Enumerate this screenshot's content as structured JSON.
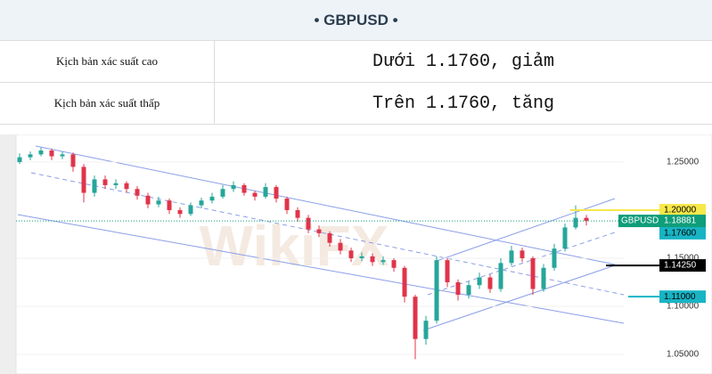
{
  "header": {
    "title": "• GBPUSD •"
  },
  "table": {
    "rows": [
      [
        "Kịch bản xác suất cao",
        "Dưới 1.1760, giảm"
      ],
      [
        "Kịch bản xác suất thấp",
        "Trên 1.1760, tăng"
      ]
    ]
  },
  "chart_data": {
    "type": "candlestick",
    "watermark": "WikiFX",
    "up_color": "#26a69a",
    "down_color": "#e0344a",
    "categories": [
      null,
      null,
      null,
      null,
      null,
      null,
      null,
      null,
      null,
      null,
      null,
      null,
      null,
      null,
      null,
      null,
      null,
      null,
      null,
      null,
      null,
      null,
      null,
      null,
      null,
      null,
      null,
      null,
      null,
      null,
      null,
      null,
      null,
      null,
      null,
      null,
      null,
      null,
      null,
      null,
      null,
      null,
      null,
      null,
      null,
      null,
      null,
      null,
      null,
      null,
      null,
      null,
      null,
      null
    ],
    "ohlc": [
      [
        1.25,
        1.259,
        1.248,
        1.255
      ],
      [
        1.255,
        1.261,
        1.252,
        1.258
      ],
      [
        1.258,
        1.265,
        1.256,
        1.262
      ],
      [
        1.262,
        1.264,
        1.252,
        1.256
      ],
      [
        1.256,
        1.261,
        1.253,
        1.258
      ],
      [
        1.258,
        1.26,
        1.24,
        1.245
      ],
      [
        1.245,
        1.248,
        1.208,
        1.218
      ],
      [
        1.218,
        1.236,
        1.214,
        1.232
      ],
      [
        1.232,
        1.236,
        1.222,
        1.226
      ],
      [
        1.226,
        1.232,
        1.222,
        1.228
      ],
      [
        1.228,
        1.23,
        1.218,
        1.222
      ],
      [
        1.222,
        1.225,
        1.211,
        1.215
      ],
      [
        1.215,
        1.218,
        1.202,
        1.206
      ],
      [
        1.206,
        1.214,
        1.203,
        1.21
      ],
      [
        1.21,
        1.212,
        1.196,
        1.2
      ],
      [
        1.2,
        1.203,
        1.192,
        1.196
      ],
      [
        1.196,
        1.208,
        1.194,
        1.205
      ],
      [
        1.205,
        1.213,
        1.202,
        1.21
      ],
      [
        1.21,
        1.218,
        1.207,
        1.214
      ],
      [
        1.214,
        1.226,
        1.212,
        1.222
      ],
      [
        1.222,
        1.23,
        1.219,
        1.226
      ],
      [
        1.226,
        1.228,
        1.215,
        1.218
      ],
      [
        1.218,
        1.22,
        1.21,
        1.214
      ],
      [
        1.214,
        1.228,
        1.212,
        1.224
      ],
      [
        1.224,
        1.226,
        1.208,
        1.212
      ],
      [
        1.212,
        1.214,
        1.196,
        1.2
      ],
      [
        1.2,
        1.203,
        1.188,
        1.192
      ],
      [
        1.192,
        1.195,
        1.176,
        1.18
      ],
      [
        1.18,
        1.184,
        1.172,
        1.176
      ],
      [
        1.176,
        1.178,
        1.162,
        1.166
      ],
      [
        1.166,
        1.17,
        1.154,
        1.158
      ],
      [
        1.158,
        1.161,
        1.146,
        1.15
      ],
      [
        1.15,
        1.156,
        1.147,
        1.152
      ],
      [
        1.152,
        1.155,
        1.142,
        1.146
      ],
      [
        1.146,
        1.152,
        1.143,
        1.148
      ],
      [
        1.148,
        1.15,
        1.136,
        1.14
      ],
      [
        1.14,
        1.142,
        1.104,
        1.11
      ],
      [
        1.11,
        1.112,
        1.045,
        1.066
      ],
      [
        1.066,
        1.09,
        1.06,
        1.085
      ],
      [
        1.085,
        1.152,
        1.082,
        1.148
      ],
      [
        1.148,
        1.15,
        1.12,
        1.125
      ],
      [
        1.125,
        1.128,
        1.106,
        1.112
      ],
      [
        1.112,
        1.126,
        1.108,
        1.122
      ],
      [
        1.122,
        1.135,
        1.118,
        1.13
      ],
      [
        1.13,
        1.133,
        1.114,
        1.118
      ],
      [
        1.118,
        1.15,
        1.115,
        1.145
      ],
      [
        1.145,
        1.163,
        1.142,
        1.158
      ],
      [
        1.158,
        1.161,
        1.146,
        1.15
      ],
      [
        1.15,
        1.152,
        1.112,
        1.118
      ],
      [
        1.118,
        1.144,
        1.115,
        1.14
      ],
      [
        1.14,
        1.165,
        1.137,
        1.16
      ],
      [
        1.16,
        1.186,
        1.157,
        1.182
      ],
      [
        1.182,
        1.205,
        1.18,
        1.192
      ],
      [
        1.192,
        1.195,
        1.184,
        1.1888
      ]
    ],
    "ylim": [
      1.0296,
      1.2787
    ],
    "yticks": [
      {
        "value": 1.25,
        "label": "1.25000"
      },
      {
        "value": 1.15,
        "label": "1.15000"
      },
      {
        "value": 1.1,
        "label": "1.10000"
      },
      {
        "value": 1.05,
        "label": "1.05000"
      }
    ],
    "grid": true,
    "last_price": {
      "name": "GBPUSD",
      "value": 1.18881,
      "label": "1.18881",
      "color": "#0f9d7a"
    },
    "levels": [
      {
        "value": 1.2,
        "label": "1.20000",
        "color": "#f7e84a",
        "text_color": "#000000",
        "line_from": 640
      },
      {
        "value": 1.176,
        "label": "1.17600",
        "color": "#18b4c4",
        "text_color": "#000000",
        "line_from": null
      },
      {
        "value": 1.1425,
        "label": "1.14250",
        "color": "#000000",
        "text_color": "#ffffff",
        "line_from": 680
      },
      {
        "value": 1.11,
        "label": "1.11000",
        "color": "#18b4c4",
        "text_color": "#000000",
        "line_from": 705
      }
    ]
  }
}
